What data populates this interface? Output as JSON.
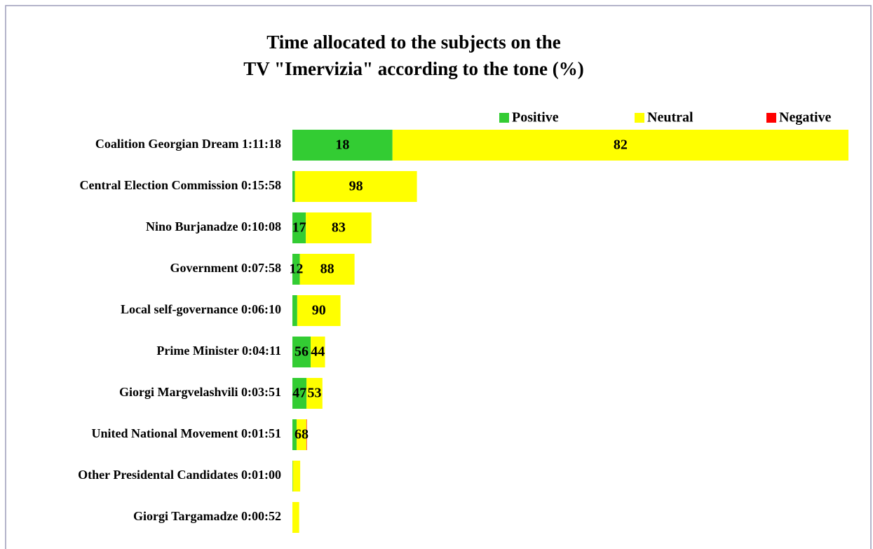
{
  "chart_data": {
    "type": "stacked-bar-horizontal",
    "title": [
      "Time allocated to the subjects on the",
      "TV \"Imervizia\" according to the tone (%)"
    ],
    "categories": [
      "Coalition Georgian Dream 1:11:18",
      "Central Election Commission 0:15:58",
      "Nino Burjanadze 0:10:08",
      "Government 0:07:58",
      "Local self-governance 0:06:10",
      "Prime Minister 0:04:11",
      "Giorgi Margvelashvili 0:03:51",
      "United National Movement 0:01:51",
      "Other Presidental Candidates 0:01:00",
      "Giorgi Targamadze 0:00:52"
    ],
    "series": [
      {
        "name": "Positive",
        "color": "#33cc33",
        "values": [
          18,
          2,
          17,
          12,
          10,
          56,
          47,
          29,
          5,
          0
        ],
        "value_labels": [
          "18",
          null,
          "17",
          "12",
          null,
          "56",
          "47",
          null,
          null,
          null
        ]
      },
      {
        "name": "Neutral",
        "color": "#ffff00",
        "values": [
          82,
          98,
          83,
          88,
          90,
          44,
          53,
          68,
          95,
          100
        ],
        "value_labels": [
          "82",
          "98",
          "83",
          "88",
          "90",
          "44",
          "53",
          "68",
          null,
          null
        ]
      },
      {
        "name": "Negative",
        "color": "#ff0000",
        "values": [
          0,
          0,
          0,
          0,
          0,
          0,
          0,
          3,
          0,
          0
        ],
        "value_labels": [
          null,
          null,
          null,
          null,
          null,
          null,
          null,
          null,
          null,
          null
        ]
      }
    ],
    "legend": "top-right"
  }
}
